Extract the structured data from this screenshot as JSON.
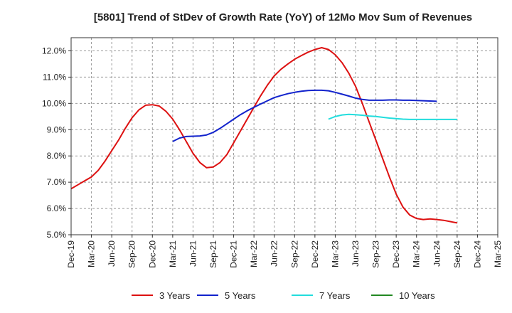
{
  "chart_data": {
    "type": "line",
    "title": "[5801]  Trend of StDev of Growth Rate (YoY) of 12Mo Mov Sum of Revenues",
    "xlabel": "",
    "ylabel": "",
    "ylim": [
      5.0,
      12.5
    ],
    "yticks": [
      5.0,
      6.0,
      7.0,
      8.0,
      9.0,
      10.0,
      11.0,
      12.0
    ],
    "ytick_labels": [
      "5.0%",
      "6.0%",
      "7.0%",
      "8.0%",
      "9.0%",
      "10.0%",
      "11.0%",
      "12.0%"
    ],
    "xticks": [
      "Dec-19",
      "Mar-20",
      "Jun-20",
      "Sep-20",
      "Dec-20",
      "Mar-21",
      "Jun-21",
      "Sep-21",
      "Dec-21",
      "Mar-22",
      "Jun-22",
      "Sep-22",
      "Dec-22",
      "Mar-23",
      "Jun-23",
      "Sep-23",
      "Dec-23",
      "Mar-24",
      "Jun-24",
      "Sep-24",
      "Dec-24",
      "Mar-25"
    ],
    "grid": true,
    "legend_position": "bottom",
    "series": [
      {
        "name": "3 Years",
        "color": "#dd1111",
        "start_index": 0,
        "values": [
          6.75,
          6.9,
          7.05,
          7.2,
          7.45,
          7.8,
          8.2,
          8.6,
          9.05,
          9.45,
          9.75,
          9.93,
          9.95,
          9.9,
          9.7,
          9.4,
          9.0,
          8.55,
          8.1,
          7.75,
          7.55,
          7.58,
          7.75,
          8.05,
          8.5,
          8.95,
          9.4,
          9.85,
          10.3,
          10.7,
          11.05,
          11.3,
          11.5,
          11.68,
          11.82,
          11.95,
          12.05,
          12.12,
          12.05,
          11.85,
          11.55,
          11.15,
          10.65,
          10.0,
          9.3,
          8.6,
          7.9,
          7.2,
          6.55,
          6.05,
          5.75,
          5.62,
          5.58,
          5.6,
          5.58,
          5.55,
          5.5,
          5.45
        ]
      },
      {
        "name": "5 Years",
        "color": "#1122cc",
        "start_index": 15,
        "values": [
          8.55,
          8.68,
          8.74,
          8.75,
          8.76,
          8.8,
          8.9,
          9.05,
          9.22,
          9.4,
          9.57,
          9.72,
          9.85,
          9.98,
          10.1,
          10.22,
          10.3,
          10.37,
          10.42,
          10.46,
          10.49,
          10.5,
          10.5,
          10.48,
          10.42,
          10.35,
          10.28,
          10.2,
          10.15,
          10.12,
          10.12,
          10.12,
          10.13,
          10.13,
          10.12,
          10.12,
          10.11,
          10.1,
          10.09,
          10.08
        ]
      },
      {
        "name": "7 Years",
        "color": "#22dddd",
        "start_index": 38,
        "values": [
          9.4,
          9.5,
          9.56,
          9.58,
          9.57,
          9.55,
          9.52,
          9.5,
          9.47,
          9.44,
          9.42,
          9.4,
          9.39,
          9.39,
          9.39,
          9.39,
          9.39,
          9.39,
          9.39,
          9.39
        ]
      },
      {
        "name": "10 Years",
        "color": "#228822",
        "start_index": 0,
        "values": []
      }
    ]
  }
}
